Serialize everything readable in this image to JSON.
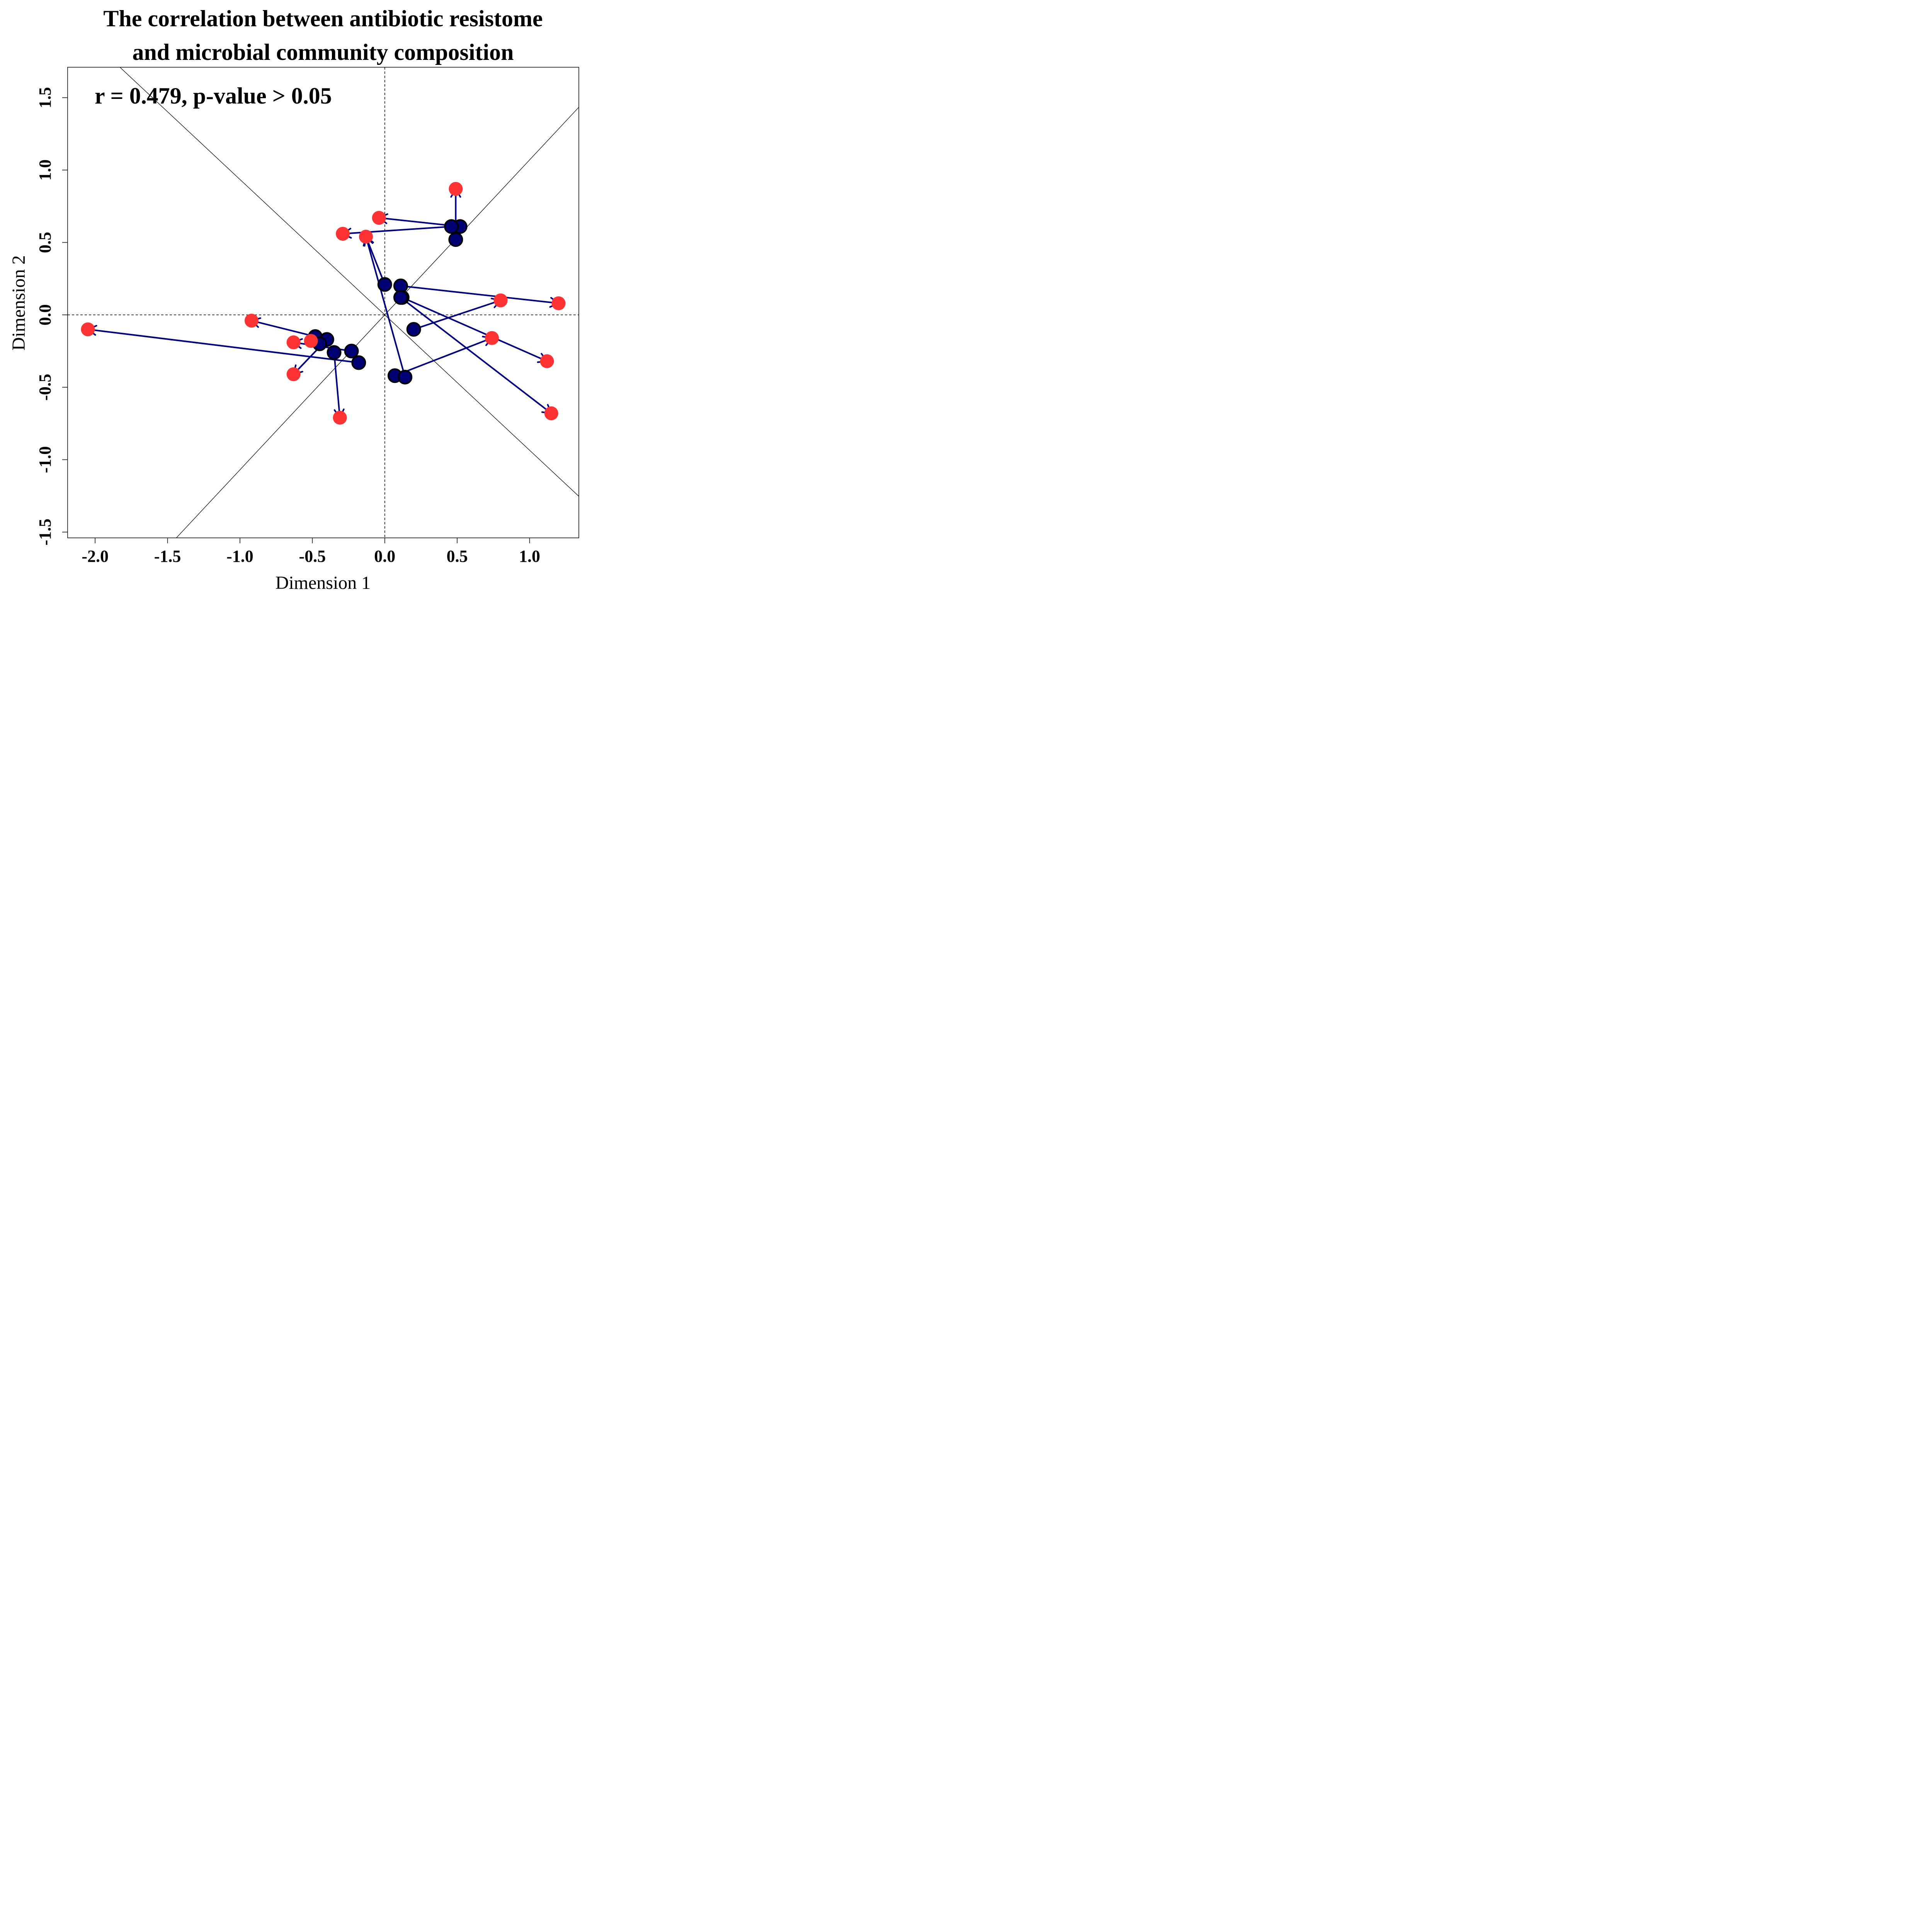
{
  "chart_data": {
    "type": "scatter",
    "title_line1": "The correlation between antibiotic resistome",
    "title_line2": "and microbial community composition",
    "xlabel": "Dimension 1",
    "ylabel": "Dimension 2",
    "annotation": "r = 0.479, p-value > 0.05",
    "xlim": [
      -2.19,
      1.34
    ],
    "ylim": [
      -1.54,
      1.71
    ],
    "xticks": [
      -2.0,
      -1.5,
      -1.0,
      -0.5,
      0.0,
      0.5,
      1.0
    ],
    "xtick_labels": [
      "-2.0",
      "-1.5",
      "-1.0",
      "-0.5",
      "0.0",
      "0.5",
      "1.0"
    ],
    "yticks": [
      -1.5,
      -1.0,
      -0.5,
      0.0,
      0.5,
      1.0,
      1.5
    ],
    "ytick_labels": [
      "-1.5",
      "-1.0",
      "-0.5",
      "0.0",
      "0.5",
      "1.0",
      "1.5"
    ],
    "colors": {
      "start": "#000075",
      "end": "#ff3333",
      "arrow": "#000080",
      "outline": "#000000"
    },
    "rotation_lines": [
      {
        "slope": 1.07,
        "intercept": 0.0
      },
      {
        "slope": -0.935,
        "intercept": 0.0
      }
    ],
    "pairs": [
      {
        "start": [
          0.49,
          0.52
        ],
        "end": [
          0.49,
          0.87
        ]
      },
      {
        "start": [
          0.52,
          0.61
        ],
        "end": [
          -0.04,
          0.67
        ]
      },
      {
        "start": [
          0.46,
          0.61
        ],
        "end": [
          -0.29,
          0.56
        ]
      },
      {
        "start": [
          0.0,
          0.21
        ],
        "end": [
          -0.13,
          0.54
        ]
      },
      {
        "start": [
          0.11,
          0.2
        ],
        "end": [
          1.2,
          0.08
        ]
      },
      {
        "start": [
          0.12,
          0.12
        ],
        "end": [
          1.12,
          -0.32
        ]
      },
      {
        "start": [
          0.11,
          0.12
        ],
        "end": [
          1.15,
          -0.68
        ]
      },
      {
        "start": [
          0.2,
          -0.1
        ],
        "end": [
          0.8,
          0.1
        ]
      },
      {
        "start": [
          0.07,
          -0.42
        ],
        "end": [
          0.74,
          -0.16
        ]
      },
      {
        "start": [
          0.14,
          -0.43
        ],
        "end": [
          -0.13,
          0.54
        ]
      },
      {
        "start": [
          -0.48,
          -0.15
        ],
        "end": [
          -0.92,
          -0.04
        ]
      },
      {
        "start": [
          -0.4,
          -0.17
        ],
        "end": [
          -0.63,
          -0.41
        ]
      },
      {
        "start": [
          -0.35,
          -0.26
        ],
        "end": [
          -0.31,
          -0.71
        ]
      },
      {
        "start": [
          -0.23,
          -0.25
        ],
        "end": [
          -0.63,
          -0.19
        ]
      },
      {
        "start": [
          -0.18,
          -0.33
        ],
        "end": [
          -2.05,
          -0.1
        ]
      },
      {
        "start": [
          -0.45,
          -0.2
        ],
        "end": [
          -0.51,
          -0.18
        ]
      }
    ]
  }
}
